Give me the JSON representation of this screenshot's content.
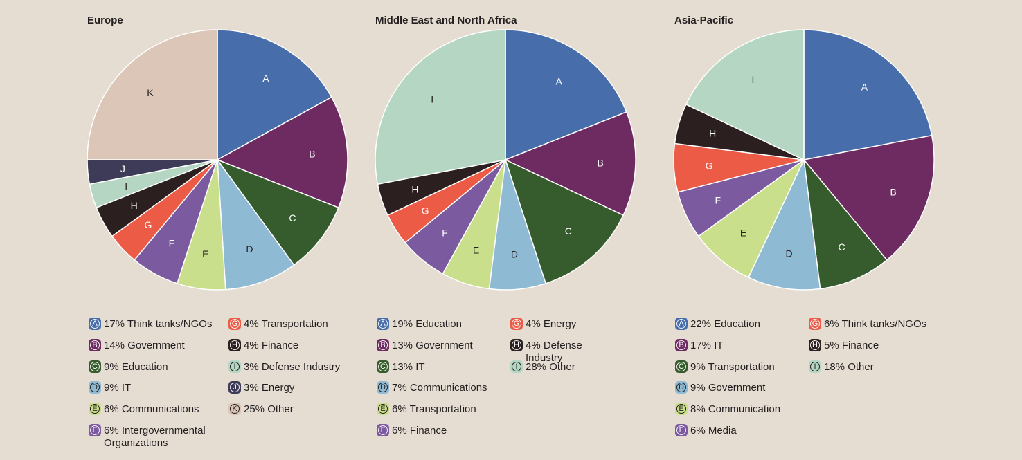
{
  "chart_data": [
    {
      "type": "pie",
      "title": "Europe",
      "slices": [
        {
          "key": "A",
          "value": 17,
          "label": "Think tanks/NGOs",
          "legend": "17% Think tanks/NGOs",
          "color": "#486dab"
        },
        {
          "key": "B",
          "value": 14,
          "label": "Government",
          "legend": "14% Government",
          "color": "#6d2b62"
        },
        {
          "key": "C",
          "value": 9,
          "label": "Education",
          "legend": "9% Education",
          "color": "#365b2c"
        },
        {
          "key": "D",
          "value": 9,
          "label": "IT",
          "legend": "9% IT",
          "color": "#8fbad4"
        },
        {
          "key": "E",
          "value": 6,
          "label": "Communications",
          "legend": "6% Communications",
          "color": "#cadf8c"
        },
        {
          "key": "F",
          "value": 6,
          "label": "Intergovernmental Organizations",
          "legend": "6% Intergovernmental\nOrganizations",
          "color": "#7b5aa0"
        },
        {
          "key": "G",
          "value": 4,
          "label": "Transportation",
          "legend": "4% Transportation",
          "color": "#ec5b46"
        },
        {
          "key": "H",
          "value": 4,
          "label": "Finance",
          "legend": "4% Finance",
          "color": "#2b1f1f"
        },
        {
          "key": "I",
          "value": 3,
          "label": "Defense Industry",
          "legend": "3% Defense Industry",
          "color": "#b6d6c4"
        },
        {
          "key": "J",
          "value": 3,
          "label": "Energy",
          "legend": "3% Energy",
          "color": "#3d3b57"
        },
        {
          "key": "K",
          "value": 25,
          "label": "Other",
          "legend": "25% Other",
          "color": "#dbc6b7"
        }
      ]
    },
    {
      "type": "pie",
      "title": "Middle East and North Africa",
      "slices": [
        {
          "key": "A",
          "value": 19,
          "label": "Education",
          "legend": "19% Education",
          "color": "#486dab"
        },
        {
          "key": "B",
          "value": 13,
          "label": "Government",
          "legend": "13% Government",
          "color": "#6d2b62"
        },
        {
          "key": "C",
          "value": 13,
          "label": "IT",
          "legend": "13% IT",
          "color": "#365b2c"
        },
        {
          "key": "D",
          "value": 7,
          "label": "Communications",
          "legend": "7% Communications",
          "color": "#8fbad4"
        },
        {
          "key": "E",
          "value": 6,
          "label": "Transportation",
          "legend": "6% Transportation",
          "color": "#cadf8c"
        },
        {
          "key": "F",
          "value": 6,
          "label": "Finance",
          "legend": "6% Finance",
          "color": "#7b5aa0"
        },
        {
          "key": "G",
          "value": 4,
          "label": "Energy",
          "legend": "4% Energy",
          "color": "#ec5b46"
        },
        {
          "key": "H",
          "value": 4,
          "label": "Defense Industry",
          "legend": "4% Defense\n     Industry",
          "color": "#2b1f1f"
        },
        {
          "key": "I",
          "value": 28,
          "label": "Other",
          "legend": "28% Other",
          "color": "#b6d6c4"
        }
      ]
    },
    {
      "type": "pie",
      "title": "Asia-Pacific",
      "slices": [
        {
          "key": "A",
          "value": 22,
          "label": "Education",
          "legend": "22% Education",
          "color": "#486dab"
        },
        {
          "key": "B",
          "value": 17,
          "label": "IT",
          "legend": "17% IT",
          "color": "#6d2b62"
        },
        {
          "key": "C",
          "value": 9,
          "label": "Transportation",
          "legend": "9% Transportation",
          "color": "#365b2c"
        },
        {
          "key": "D",
          "value": 9,
          "label": "Government",
          "legend": "9% Government",
          "color": "#8fbad4"
        },
        {
          "key": "E",
          "value": 8,
          "label": "Communication",
          "legend": "8% Communication",
          "color": "#cadf8c"
        },
        {
          "key": "F",
          "value": 6,
          "label": "Media",
          "legend": "6% Media",
          "color": "#7b5aa0"
        },
        {
          "key": "G",
          "value": 6,
          "label": "Think tanks/NGOs",
          "legend": "6% Think tanks/NGOs",
          "color": "#ec5b46"
        },
        {
          "key": "H",
          "value": 5,
          "label": "Finance",
          "legend": "5% Finance",
          "color": "#2b1f1f"
        },
        {
          "key": "I",
          "value": 18,
          "label": "Other",
          "legend": "18% Other",
          "color": "#b6d6c4"
        }
      ]
    }
  ]
}
